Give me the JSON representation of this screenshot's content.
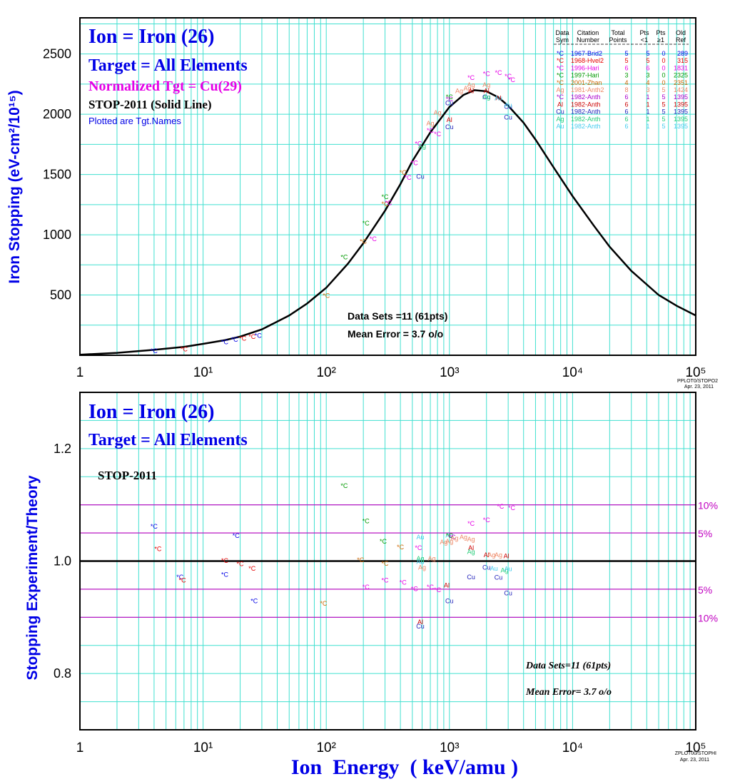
{
  "colors": {
    "background": "#ffffff",
    "grid": "#40e0d0",
    "frame": "#000000",
    "curve": "#000000",
    "title_blue": "#0000e6",
    "magenta": "#e600e6",
    "pink_lines": "#c000c0"
  },
  "upper": {
    "title1": "Ion = Iron (26)",
    "title2": "Target = All Elements",
    "title3": "Normalized Tgt = Cu(29)",
    "title4": "STOP-2011 (Solid Line)",
    "title5": "Plotted are Tgt.Names",
    "ylabel": "Iron Stopping (eV-cm²/10¹⁵)",
    "stats1": "Data Sets =11 (61pts)",
    "stats2": "Mean Error =  3.7 o/o",
    "corner1": "PPLOT0/STOPO2",
    "corner2": "Apr. 23, 2011"
  },
  "lower": {
    "title1": "Ion = Iron (26)",
    "title2": "Target = All Elements",
    "title3": "STOP-2011",
    "ylabel": "Stopping  Experiment/Theory",
    "stats1": "Data Sets=11 (61pts)",
    "stats2": "Mean Error=  3.7 o/o",
    "corner1": "ZPLOT00/STOPHI",
    "corner2": "Apr. 23, 2011",
    "band_labels": [
      "10%",
      "5%",
      "5%",
      "10%"
    ]
  },
  "xlabel": "Ion  Energy  ( keV/amu )",
  "x_ticks": [
    "1",
    "10¹",
    "10²",
    "10³",
    "10⁴",
    "10⁵"
  ],
  "legend": {
    "header1": [
      "Data",
      "Citation",
      "Total",
      "Pts",
      "Pts",
      "Old"
    ],
    "header2": [
      "Sym",
      "Number",
      "Points",
      "<1",
      "≥1",
      "Ref"
    ],
    "rows": [
      {
        "sym": "*C",
        "cit": "1967-Brid2",
        "tot": "5",
        "lt": "5",
        "ge": "0",
        "ref": "289",
        "color": "#0000e6"
      },
      {
        "sym": "*C",
        "cit": "1968-Hvel2",
        "tot": "5",
        "lt": "5",
        "ge": "0",
        "ref": "315",
        "color": "#e60000"
      },
      {
        "sym": "*C",
        "cit": "1996-Hari",
        "tot": "6",
        "lt": "6",
        "ge": "0",
        "ref": "1831",
        "color": "#e600e6"
      },
      {
        "sym": "*C",
        "cit": "1997-Hari",
        "tot": "3",
        "lt": "3",
        "ge": "0",
        "ref": "2325",
        "color": "#009900"
      },
      {
        "sym": "*C",
        "cit": "2001-Zhan",
        "tot": "4",
        "lt": "4",
        "ge": "0",
        "ref": "2351",
        "color": "#cc6600"
      },
      {
        "sym": "Ag",
        "cit": "1981-Anth2",
        "tot": "8",
        "lt": "3",
        "ge": "5",
        "ref": "1424",
        "color": "#ee8866"
      },
      {
        "sym": "*C",
        "cit": "1982-Anth",
        "tot": "6",
        "lt": "1",
        "ge": "5",
        "ref": "1395",
        "color": "#aa00cc"
      },
      {
        "sym": "Al",
        "cit": "1982-Anth",
        "tot": "6",
        "lt": "1",
        "ge": "5",
        "ref": "1395",
        "color": "#cc0000"
      },
      {
        "sym": "Cu",
        "cit": "1982-Anth",
        "tot": "6",
        "lt": "1",
        "ge": "5",
        "ref": "1395",
        "color": "#2222bb"
      },
      {
        "sym": "Ag",
        "cit": "1982-Anth",
        "tot": "6",
        "lt": "1",
        "ge": "5",
        "ref": "1395",
        "color": "#22cc77"
      },
      {
        "sym": "Au",
        "cit": "1982-Anth",
        "tot": "6",
        "lt": "1",
        "ge": "5",
        "ref": "1395",
        "color": "#44ccee"
      }
    ]
  },
  "chart_data": [
    {
      "type": "scatter",
      "title": "Ion = Iron (26)",
      "xlabel": "Ion  Energy  ( keV/amu )",
      "ylabel": "Iron Stopping (eV-cm²/10¹⁵)",
      "xscale": "log",
      "xlim": [
        1,
        100000
      ],
      "ylim": [
        0,
        2800
      ],
      "yticks": [
        500,
        1000,
        1500,
        2000,
        2500
      ],
      "grid": true,
      "legend_position": "top-right",
      "theory_curve": {
        "name": "STOP-2011 (Solid Line)",
        "x": [
          1,
          2,
          4,
          7,
          10,
          15,
          20,
          30,
          50,
          70,
          100,
          150,
          200,
          300,
          400,
          500,
          700,
          1000,
          1300,
          1600,
          2000,
          2500,
          3000,
          4000,
          5000,
          7000,
          10000,
          15000,
          20000,
          30000,
          50000,
          70000,
          100000
        ],
        "y": [
          5,
          20,
          45,
          70,
          95,
          125,
          155,
          215,
          330,
          430,
          560,
          760,
          930,
          1200,
          1420,
          1610,
          1850,
          2060,
          2160,
          2200,
          2190,
          2140,
          2070,
          1930,
          1790,
          1560,
          1320,
          1070,
          900,
          700,
          500,
          410,
          330
        ]
      },
      "points": [
        {
          "label": "*C",
          "x": 4,
          "y": 40,
          "color": "#0000e6"
        },
        {
          "label": "*C",
          "x": 7,
          "y": 55,
          "color": "#e60000"
        },
        {
          "label": "*C",
          "x": 15,
          "y": 115,
          "color": "#0000e6"
        },
        {
          "label": "*C",
          "x": 18,
          "y": 135,
          "color": "#0000e6"
        },
        {
          "label": "*C",
          "x": 21,
          "y": 145,
          "color": "#e60000"
        },
        {
          "label": "*C",
          "x": 25,
          "y": 160,
          "color": "#e60000"
        },
        {
          "label": "*C",
          "x": 28,
          "y": 170,
          "color": "#0000e6"
        },
        {
          "label": "*C",
          "x": 100,
          "y": 500,
          "color": "#cc6600"
        },
        {
          "label": "*C",
          "x": 140,
          "y": 820,
          "color": "#009900"
        },
        {
          "label": "*C",
          "x": 200,
          "y": 950,
          "color": "#cc6600"
        },
        {
          "label": "*C",
          "x": 210,
          "y": 1100,
          "color": "#009900"
        },
        {
          "label": "*C",
          "x": 240,
          "y": 970,
          "color": "#e600e6"
        },
        {
          "label": "*C",
          "x": 300,
          "y": 1320,
          "color": "#009900"
        },
        {
          "label": "*C",
          "x": 300,
          "y": 1260,
          "color": "#cc6600"
        },
        {
          "label": "*C",
          "x": 320,
          "y": 1270,
          "color": "#e600e6"
        },
        {
          "label": "*C",
          "x": 420,
          "y": 1520,
          "color": "#cc6600"
        },
        {
          "label": "*C",
          "x": 460,
          "y": 1480,
          "color": "#e600e6"
        },
        {
          "label": "*C",
          "x": 520,
          "y": 1600,
          "color": "#e600e6"
        },
        {
          "label": "*C",
          "x": 560,
          "y": 1760,
          "color": "#e600e6"
        },
        {
          "label": "Cu",
          "x": 580,
          "y": 1490,
          "color": "#2222bb"
        },
        {
          "label": "Ag",
          "x": 600,
          "y": 1740,
          "color": "#22cc77"
        },
        {
          "label": "*C",
          "x": 800,
          "y": 1840,
          "color": "#e600e6"
        },
        {
          "label": "*C",
          "x": 700,
          "y": 1870,
          "color": "#e600e6"
        },
        {
          "label": "Ag",
          "x": 700,
          "y": 1930,
          "color": "#ee8866"
        },
        {
          "label": "Al",
          "x": 1000,
          "y": 1960,
          "color": "#cc0000"
        },
        {
          "label": "Cu",
          "x": 1000,
          "y": 1900,
          "color": "#2222bb"
        },
        {
          "label": "Ag",
          "x": 800,
          "y": 2020,
          "color": "#ee8866"
        },
        {
          "label": "*C",
          "x": 1000,
          "y": 2150,
          "color": "#009900"
        },
        {
          "label": "*C",
          "x": 1000,
          "y": 2130,
          "color": "#aa00cc"
        },
        {
          "label": "Cu",
          "x": 1000,
          "y": 2100,
          "color": "#2222bb"
        },
        {
          "label": "Ag",
          "x": 1200,
          "y": 2200,
          "color": "#ee8866"
        },
        {
          "label": "Ag",
          "x": 1400,
          "y": 2220,
          "color": "#ee8866"
        },
        {
          "label": "*C",
          "x": 1500,
          "y": 2310,
          "color": "#e600e6"
        },
        {
          "label": "Ag",
          "x": 1500,
          "y": 2250,
          "color": "#ee8866"
        },
        {
          "label": "Al",
          "x": 1500,
          "y": 2200,
          "color": "#cc0000"
        },
        {
          "label": "Ag",
          "x": 2000,
          "y": 2250,
          "color": "#ee8866"
        },
        {
          "label": "Al",
          "x": 2000,
          "y": 2200,
          "color": "#cc0000"
        },
        {
          "label": "Cu",
          "x": 2000,
          "y": 2150,
          "color": "#2222bb"
        },
        {
          "label": "Ag",
          "x": 2000,
          "y": 2150,
          "color": "#22cc77"
        },
        {
          "label": "*C",
          "x": 2000,
          "y": 2340,
          "color": "#e600e6"
        },
        {
          "label": "Al",
          "x": 2500,
          "y": 2140,
          "color": "#cc0000"
        },
        {
          "label": "Au",
          "x": 2500,
          "y": 2140,
          "color": "#44ccee"
        },
        {
          "label": "*C",
          "x": 2500,
          "y": 2350,
          "color": "#e600e6"
        },
        {
          "label": "*C",
          "x": 3000,
          "y": 2320,
          "color": "#e600e6"
        },
        {
          "label": "*C",
          "x": 3200,
          "y": 2290,
          "color": "#e600e6"
        },
        {
          "label": "Cu",
          "x": 3000,
          "y": 2070,
          "color": "#2222bb"
        },
        {
          "label": "Au",
          "x": 3000,
          "y": 2080,
          "color": "#44ccee"
        },
        {
          "label": "Cu",
          "x": 3000,
          "y": 1980,
          "color": "#2222bb"
        }
      ]
    },
    {
      "type": "scatter",
      "title": "Ion = Iron (26)",
      "xlabel": "Ion  Energy  ( keV/amu )",
      "ylabel": "Stopping  Experiment/Theory",
      "xscale": "log",
      "xlim": [
        1,
        100000
      ],
      "ylim": [
        0.7,
        1.3
      ],
      "yticks": [
        0.8,
        1.0,
        1.2
      ],
      "reference_lines": [
        1.1,
        1.05,
        1.0,
        0.95,
        0.9
      ],
      "grid": true,
      "points": [
        {
          "label": "*C",
          "x": 4,
          "y": 1.063,
          "color": "#0000e6"
        },
        {
          "label": "*C",
          "x": 4.3,
          "y": 1.023,
          "color": "#e60000"
        },
        {
          "label": "*C",
          "x": 6.5,
          "y": 0.973,
          "color": "#0000e6"
        },
        {
          "label": "*C",
          "x": 6.8,
          "y": 0.967,
          "color": "#e60000"
        },
        {
          "label": "*C",
          "x": 15,
          "y": 1.002,
          "color": "#e60000"
        },
        {
          "label": "*C",
          "x": 15,
          "y": 0.977,
          "color": "#0000e6"
        },
        {
          "label": "*C",
          "x": 18.5,
          "y": 1.046,
          "color": "#0000e6"
        },
        {
          "label": "*C",
          "x": 20,
          "y": 0.996,
          "color": "#e60000"
        },
        {
          "label": "*C",
          "x": 25,
          "y": 0.988,
          "color": "#e60000"
        },
        {
          "label": "*C",
          "x": 26,
          "y": 0.93,
          "color": "#0000e6"
        },
        {
          "label": "*C",
          "x": 95,
          "y": 0.926,
          "color": "#cc6600"
        },
        {
          "label": "*C",
          "x": 140,
          "y": 1.135,
          "color": "#009900"
        },
        {
          "label": "*C",
          "x": 190,
          "y": 1.003,
          "color": "#cc6600"
        },
        {
          "label": "*C",
          "x": 210,
          "y": 1.072,
          "color": "#009900"
        },
        {
          "label": "*C",
          "x": 210,
          "y": 0.955,
          "color": "#e600e6"
        },
        {
          "label": "*C",
          "x": 290,
          "y": 1.036,
          "color": "#009900"
        },
        {
          "label": "*C",
          "x": 300,
          "y": 0.997,
          "color": "#cc6600"
        },
        {
          "label": "*C",
          "x": 300,
          "y": 0.967,
          "color": "#e600e6"
        },
        {
          "label": "*C",
          "x": 400,
          "y": 1.026,
          "color": "#cc6600"
        },
        {
          "label": "*C",
          "x": 420,
          "y": 0.963,
          "color": "#e600e6"
        },
        {
          "label": "*C",
          "x": 520,
          "y": 0.952,
          "color": "#e600e6"
        },
        {
          "label": "*C",
          "x": 560,
          "y": 1.025,
          "color": "#e600e6"
        },
        {
          "label": "Au",
          "x": 580,
          "y": 1.044,
          "color": "#44ccee"
        },
        {
          "label": "Au",
          "x": 580,
          "y": 1.0,
          "color": "#44ccee"
        },
        {
          "label": "Ag",
          "x": 580,
          "y": 1.006,
          "color": "#22cc77"
        },
        {
          "label": "Ag",
          "x": 720,
          "y": 1.006,
          "color": "#ee8866"
        },
        {
          "label": "Ag",
          "x": 600,
          "y": 0.99,
          "color": "#ee8866"
        },
        {
          "label": "Al",
          "x": 580,
          "y": 0.893,
          "color": "#cc0000"
        },
        {
          "label": "Cu",
          "x": 580,
          "y": 0.885,
          "color": "#2222bb"
        },
        {
          "label": "*C",
          "x": 700,
          "y": 0.955,
          "color": "#e600e6"
        },
        {
          "label": "*C",
          "x": 800,
          "y": 0.95,
          "color": "#e600e6"
        },
        {
          "label": "Al",
          "x": 950,
          "y": 0.958,
          "color": "#cc0000"
        },
        {
          "label": "Cu",
          "x": 1000,
          "y": 0.93,
          "color": "#2222bb"
        },
        {
          "label": "Au",
          "x": 1000,
          "y": 1.047,
          "color": "#44ccee"
        },
        {
          "label": "*C",
          "x": 1000,
          "y": 1.046,
          "color": "#009900"
        },
        {
          "label": "*C",
          "x": 1050,
          "y": 1.044,
          "color": "#aa00cc"
        },
        {
          "label": "Ag",
          "x": 1100,
          "y": 1.042,
          "color": "#ee8866"
        },
        {
          "label": "Ag",
          "x": 900,
          "y": 1.035,
          "color": "#ee8866"
        },
        {
          "label": "Ag",
          "x": 1000,
          "y": 1.036,
          "color": "#ee8866"
        },
        {
          "label": "Ag",
          "x": 1300,
          "y": 1.044,
          "color": "#ee8866"
        },
        {
          "label": "Ag",
          "x": 1500,
          "y": 1.04,
          "color": "#ee8866"
        },
        {
          "label": "Al",
          "x": 1500,
          "y": 1.025,
          "color": "#cc0000"
        },
        {
          "label": "Ag",
          "x": 1500,
          "y": 1.018,
          "color": "#22cc77"
        },
        {
          "label": "Cu",
          "x": 1500,
          "y": 0.973,
          "color": "#2222bb"
        },
        {
          "label": "*C",
          "x": 1500,
          "y": 1.068,
          "color": "#e600e6"
        },
        {
          "label": "*C",
          "x": 2000,
          "y": 1.074,
          "color": "#e600e6"
        },
        {
          "label": "Al",
          "x": 2000,
          "y": 1.012,
          "color": "#cc0000"
        },
        {
          "label": "Ag",
          "x": 2200,
          "y": 1.012,
          "color": "#ee8866"
        },
        {
          "label": "Ag",
          "x": 2500,
          "y": 1.012,
          "color": "#ee8866"
        },
        {
          "label": "Al",
          "x": 2900,
          "y": 1.01,
          "color": "#cc0000"
        },
        {
          "label": "Cu",
          "x": 2000,
          "y": 0.99,
          "color": "#2222bb"
        },
        {
          "label": "Au",
          "x": 2300,
          "y": 0.988,
          "color": "#44ccee"
        },
        {
          "label": "Ag",
          "x": 2800,
          "y": 0.985,
          "color": "#22cc77"
        },
        {
          "label": "Au",
          "x": 3000,
          "y": 0.987,
          "color": "#44ccee"
        },
        {
          "label": "Cu",
          "x": 2500,
          "y": 0.972,
          "color": "#2222bb"
        },
        {
          "label": "Cu",
          "x": 3000,
          "y": 0.944,
          "color": "#2222bb"
        },
        {
          "label": "*C",
          "x": 2600,
          "y": 1.098,
          "color": "#e600e6"
        },
        {
          "label": "*C",
          "x": 3200,
          "y": 1.096,
          "color": "#e600e6"
        }
      ]
    }
  ]
}
